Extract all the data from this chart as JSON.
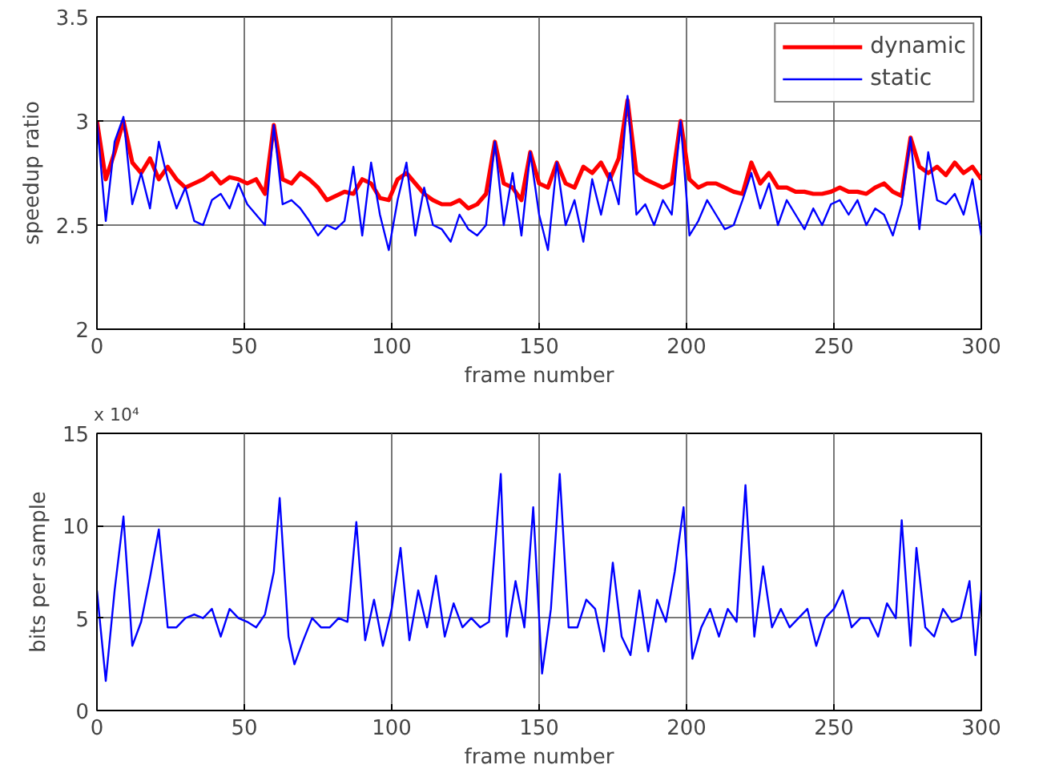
{
  "chart_data": [
    {
      "type": "line",
      "xlabel": "frame number",
      "ylabel": "speedup ratio",
      "xlim": [
        0,
        300
      ],
      "ylim": [
        2,
        3.5
      ],
      "xticks": [
        0,
        50,
        100,
        150,
        200,
        250,
        300
      ],
      "yticks": [
        2,
        2.5,
        3,
        3.5
      ],
      "grid": true,
      "legend": "top right",
      "x": [
        0,
        3,
        6,
        9,
        12,
        15,
        18,
        21,
        24,
        27,
        30,
        33,
        36,
        39,
        42,
        45,
        48,
        51,
        54,
        57,
        60,
        63,
        66,
        69,
        72,
        75,
        78,
        81,
        84,
        87,
        90,
        93,
        96,
        99,
        102,
        105,
        108,
        111,
        114,
        117,
        120,
        123,
        126,
        129,
        132,
        135,
        138,
        141,
        144,
        147,
        150,
        153,
        156,
        159,
        162,
        165,
        168,
        171,
        174,
        177,
        180,
        183,
        186,
        189,
        192,
        195,
        198,
        201,
        204,
        207,
        210,
        213,
        216,
        219,
        222,
        225,
        228,
        231,
        234,
        237,
        240,
        243,
        246,
        249,
        252,
        255,
        258,
        261,
        264,
        267,
        270,
        273,
        276,
        279,
        282,
        285,
        288,
        291,
        294,
        297,
        300
      ],
      "series": [
        {
          "name": "dynamic",
          "color": "#ff0000",
          "values": [
            3.0,
            2.72,
            2.85,
            3.0,
            2.8,
            2.75,
            2.82,
            2.72,
            2.78,
            2.72,
            2.68,
            2.7,
            2.72,
            2.75,
            2.7,
            2.73,
            2.72,
            2.7,
            2.72,
            2.65,
            2.98,
            2.72,
            2.7,
            2.75,
            2.72,
            2.68,
            2.62,
            2.64,
            2.66,
            2.65,
            2.72,
            2.7,
            2.63,
            2.62,
            2.72,
            2.75,
            2.7,
            2.65,
            2.62,
            2.6,
            2.6,
            2.62,
            2.58,
            2.6,
            2.65,
            2.9,
            2.7,
            2.68,
            2.62,
            2.85,
            2.7,
            2.68,
            2.8,
            2.7,
            2.68,
            2.78,
            2.75,
            2.8,
            2.72,
            2.82,
            3.1,
            2.75,
            2.72,
            2.7,
            2.68,
            2.7,
            3.0,
            2.72,
            2.68,
            2.7,
            2.7,
            2.68,
            2.66,
            2.65,
            2.8,
            2.7,
            2.75,
            2.68,
            2.68,
            2.66,
            2.66,
            2.65,
            2.65,
            2.66,
            2.68,
            2.66,
            2.66,
            2.65,
            2.68,
            2.7,
            2.66,
            2.64,
            2.92,
            2.78,
            2.75,
            2.78,
            2.74,
            2.8,
            2.75,
            2.78,
            2.72
          ]
        },
        {
          "name": "static",
          "color": "#0000ff",
          "values": [
            3.0,
            2.52,
            2.9,
            3.02,
            2.6,
            2.75,
            2.58,
            2.9,
            2.72,
            2.58,
            2.68,
            2.52,
            2.5,
            2.62,
            2.65,
            2.58,
            2.7,
            2.6,
            2.55,
            2.5,
            2.98,
            2.6,
            2.62,
            2.58,
            2.52,
            2.45,
            2.5,
            2.48,
            2.52,
            2.78,
            2.45,
            2.8,
            2.55,
            2.38,
            2.62,
            2.8,
            2.45,
            2.68,
            2.5,
            2.48,
            2.42,
            2.55,
            2.48,
            2.45,
            2.5,
            2.9,
            2.5,
            2.75,
            2.45,
            2.85,
            2.55,
            2.38,
            2.8,
            2.5,
            2.62,
            2.42,
            2.72,
            2.55,
            2.75,
            2.6,
            3.12,
            2.55,
            2.6,
            2.5,
            2.62,
            2.55,
            3.0,
            2.45,
            2.52,
            2.62,
            2.55,
            2.48,
            2.5,
            2.62,
            2.75,
            2.58,
            2.7,
            2.5,
            2.62,
            2.55,
            2.48,
            2.58,
            2.5,
            2.6,
            2.62,
            2.55,
            2.62,
            2.5,
            2.58,
            2.55,
            2.45,
            2.6,
            2.92,
            2.48,
            2.85,
            2.62,
            2.6,
            2.65,
            2.55,
            2.72,
            2.45
          ]
        }
      ]
    },
    {
      "type": "line",
      "xlabel": "frame number",
      "ylabel": "bits per sample",
      "annotations": [
        "x 10⁴"
      ],
      "xlim": [
        0,
        300
      ],
      "ylim": [
        0,
        15
      ],
      "xticks": [
        0,
        50,
        100,
        150,
        200,
        250,
        300
      ],
      "yticks": [
        0,
        5,
        10,
        15
      ],
      "grid": true,
      "x": [
        0,
        3,
        6,
        9,
        12,
        15,
        18,
        21,
        24,
        27,
        30,
        33,
        36,
        39,
        42,
        45,
        48,
        51,
        54,
        57,
        60,
        62,
        65,
        67,
        70,
        73,
        76,
        79,
        82,
        85,
        88,
        91,
        94,
        97,
        100,
        103,
        106,
        109,
        112,
        115,
        118,
        121,
        124,
        127,
        130,
        133,
        137,
        139,
        142,
        145,
        148,
        151,
        154,
        157,
        160,
        163,
        166,
        169,
        172,
        175,
        178,
        181,
        184,
        187,
        190,
        193,
        196,
        199,
        202,
        205,
        208,
        211,
        214,
        217,
        220,
        223,
        226,
        229,
        232,
        235,
        238,
        241,
        244,
        247,
        250,
        253,
        256,
        259,
        262,
        265,
        268,
        271,
        273,
        276,
        278,
        281,
        284,
        287,
        290,
        293,
        296,
        298,
        300
      ],
      "series": [
        {
          "color": "#0000ff",
          "values": [
            6.5,
            1.6,
            6.5,
            10.5,
            3.5,
            4.8,
            7.2,
            9.8,
            4.5,
            4.5,
            5.0,
            5.2,
            5.0,
            5.5,
            4.0,
            5.5,
            5.0,
            4.8,
            4.5,
            5.2,
            7.5,
            11.5,
            4.0,
            2.5,
            3.8,
            5.0,
            4.5,
            4.5,
            5.0,
            4.8,
            10.2,
            3.8,
            6.0,
            3.5,
            5.5,
            8.8,
            3.8,
            6.5,
            4.5,
            7.3,
            4.0,
            5.8,
            4.5,
            5.0,
            4.5,
            4.8,
            12.8,
            4.0,
            7.0,
            4.5,
            11.0,
            2.0,
            5.5,
            12.8,
            4.5,
            4.5,
            6.0,
            5.5,
            3.2,
            8.0,
            4.0,
            3.0,
            6.5,
            3.2,
            6.0,
            4.8,
            7.5,
            11.0,
            2.8,
            4.5,
            5.5,
            4.0,
            5.5,
            4.8,
            12.2,
            4.0,
            7.8,
            4.5,
            5.5,
            4.5,
            5.0,
            5.5,
            3.5,
            5.0,
            5.5,
            6.5,
            4.5,
            5.0,
            5.0,
            4.0,
            5.8,
            5.0,
            10.3,
            3.5,
            8.8,
            4.5,
            4.0,
            5.5,
            4.8,
            5.0,
            7.0,
            3.0,
            6.5
          ]
        }
      ]
    }
  ]
}
